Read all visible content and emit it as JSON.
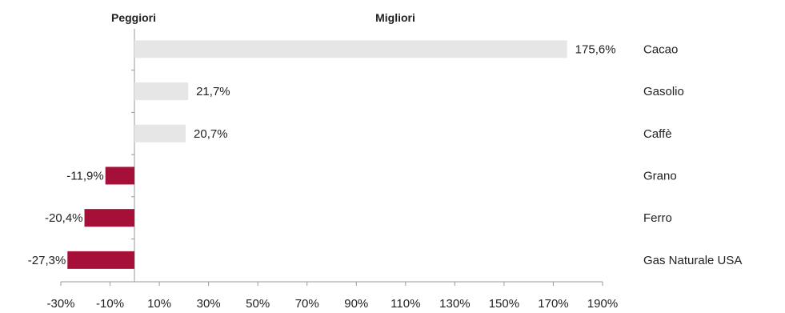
{
  "headers": {
    "worst": "Peggiori",
    "best": "Migliori"
  },
  "chart_data": {
    "type": "bar",
    "orientation": "horizontal",
    "categories": [
      "Cacao",
      "Gasolio",
      "Caffè",
      "Grano",
      "Ferro",
      "Gas Naturale USA"
    ],
    "values": [
      175.6,
      21.7,
      20.7,
      -11.9,
      -20.4,
      -27.3
    ],
    "value_labels": [
      "175,6%",
      "21,7%",
      "20,7%",
      "-11,9%",
      "-20,4%",
      "-27,3%"
    ],
    "xlim": [
      -30,
      190
    ],
    "xticks": [
      -30,
      -10,
      10,
      30,
      50,
      70,
      90,
      110,
      130,
      150,
      170,
      190
    ],
    "xtick_labels": [
      "-30%",
      "-10%",
      "10%",
      "30%",
      "50%",
      "70%",
      "90%",
      "110%",
      "130%",
      "150%",
      "170%",
      "190%"
    ],
    "positive_color": "#e6e6e6",
    "negative_color": "#a50f38",
    "grid": false
  }
}
